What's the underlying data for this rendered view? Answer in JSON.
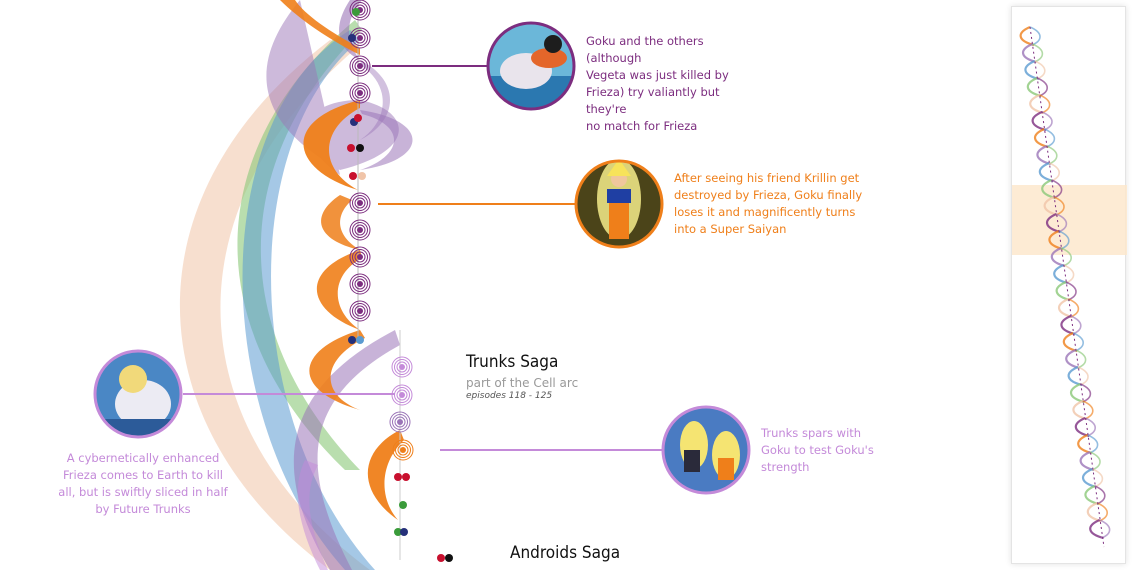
{
  "colors": {
    "goku": "#ef7f1a",
    "vegeta": "#5b9bd1",
    "gohan": "#8bc878",
    "piccolo": "#9b75b8",
    "krillin": "#f0c4a8",
    "frieza": "#7c2d7f",
    "trunks": "#c48ad9",
    "dot_red": "#c8102e",
    "dot_navy": "#25307a",
    "dot_black": "#111111",
    "dot_green": "#3a9b3a",
    "viewport": "#fde7cc"
  },
  "annotations": [
    {
      "text": "Goku and the others (although Vegeta was just killed by Frieza) try valiantly but they're no match for Frieza",
      "lines": [
        "Goku and the others (although",
        "Vegeta was just killed by",
        "Frieza) try valiantly but they're",
        "no match for Frieza"
      ],
      "color": "#7c2d7f",
      "image": "goku-fighting-frieza-image"
    },
    {
      "text": "After seeing his friend Krillin get destroyed by Frieza, Goku finally loses it and magnificently turns into a Super Saiyan",
      "lines": [
        "After seeing his friend Krillin get",
        "destroyed by Frieza, Goku finally",
        "loses it and magnificently turns",
        "into a Super Saiyan"
      ],
      "color": "#ef7f1a",
      "image": "super-saiyan-goku-image"
    },
    {
      "text": "A cybernetically enhanced Frieza comes to Earth to kill all, but is swiftly sliced in half by Future Trunks",
      "lines": [
        "A cybernetically enhanced",
        "Frieza comes to Earth to kill",
        "all, but is swiftly sliced in half",
        "by Future Trunks"
      ],
      "color": "#c48ad9",
      "image": "mecha-frieza-image"
    },
    {
      "text": "Trunks spars with Goku to test Goku's strength",
      "lines": [
        "Trunks spars with",
        "Goku to test Goku's",
        "strength"
      ],
      "color": "#c48ad9",
      "image": "trunks-sparring-goku-image"
    }
  ],
  "sagas": [
    {
      "title": "Trunks Saga",
      "subtitle": "part of the Cell arc",
      "episodes": "episodes 118 - 125"
    },
    {
      "title": "Androids Saga"
    }
  ]
}
